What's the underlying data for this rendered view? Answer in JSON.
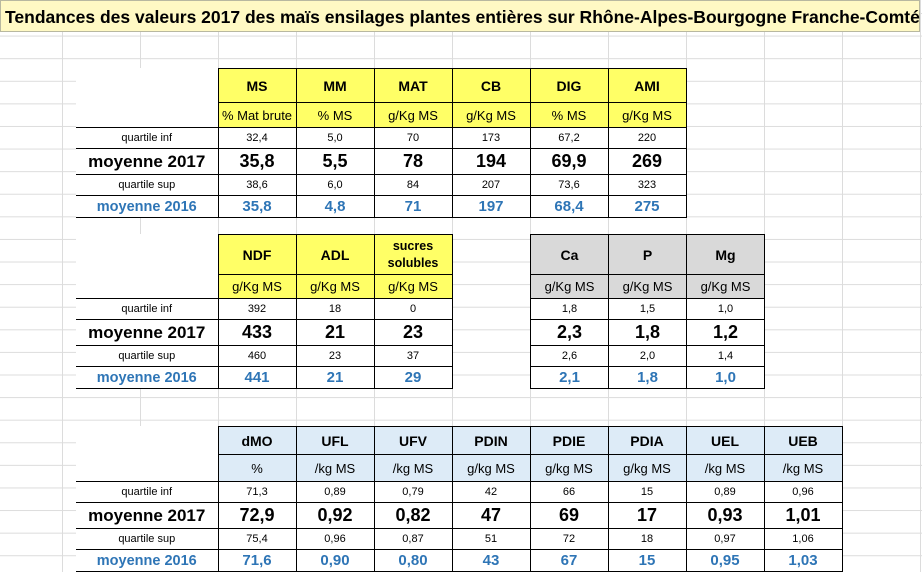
{
  "title": "Tendances des valeurs 2017 des maïs ensilages plantes entières sur Rhône-Alpes-Bourgogne Franche-Comté",
  "row_labels": {
    "quartile_inf": "quartile inf",
    "moyenne_2017": "moyenne 2017",
    "quartile_sup": "quartile sup",
    "moyenne_2016": "moyenne 2016"
  },
  "table1": {
    "headers": [
      "MS",
      "MM",
      "MAT",
      "CB",
      "DIG",
      "AMI"
    ],
    "units": [
      "% Mat brute",
      "% MS",
      "g/Kg MS",
      "g/Kg MS",
      "% MS",
      "g/Kg MS"
    ],
    "quartile_inf": [
      "32,4",
      "5,0",
      "70",
      "173",
      "67,2",
      "220"
    ],
    "moyenne_2017": [
      "35,8",
      "5,5",
      "78",
      "194",
      "69,9",
      "269"
    ],
    "quartile_sup": [
      "38,6",
      "6,0",
      "84",
      "207",
      "73,6",
      "323"
    ],
    "moyenne_2016": [
      "35,8",
      "4,8",
      "71",
      "197",
      "68,4",
      "275"
    ]
  },
  "table2": {
    "headers": [
      "NDF",
      "ADL",
      "sucres solubles"
    ],
    "units": [
      "g/Kg MS",
      "g/Kg MS",
      "g/Kg MS"
    ],
    "quartile_inf": [
      "392",
      "18",
      "0"
    ],
    "moyenne_2017": [
      "433",
      "21",
      "23"
    ],
    "quartile_sup": [
      "460",
      "23",
      "37"
    ],
    "moyenne_2016": [
      "441",
      "21",
      "29"
    ]
  },
  "table3": {
    "headers": [
      "Ca",
      "P",
      "Mg"
    ],
    "units": [
      "g/Kg MS",
      "g/Kg MS",
      "g/Kg MS"
    ],
    "quartile_inf": [
      "1,8",
      "1,5",
      "1,0"
    ],
    "moyenne_2017": [
      "2,3",
      "1,8",
      "1,2"
    ],
    "quartile_sup": [
      "2,6",
      "2,0",
      "1,4"
    ],
    "moyenne_2016": [
      "2,1",
      "1,8",
      "1,0"
    ]
  },
  "table4": {
    "headers": [
      "dMO",
      "UFL",
      "UFV",
      "PDIN",
      "PDIE",
      "PDIA",
      "UEL",
      "UEB"
    ],
    "units": [
      "%",
      "/kg MS",
      "/kg MS",
      "g/kg MS",
      "g/kg MS",
      "g/kg MS",
      "/kg MS",
      "/kg MS"
    ],
    "quartile_inf": [
      "71,3",
      "0,89",
      "0,79",
      "42",
      "66",
      "15",
      "0,89",
      "0,96"
    ],
    "moyenne_2017": [
      "72,9",
      "0,92",
      "0,82",
      "47",
      "69",
      "17",
      "0,93",
      "1,01"
    ],
    "quartile_sup": [
      "75,4",
      "0,96",
      "0,87",
      "51",
      "72",
      "18",
      "0,97",
      "1,06"
    ],
    "moyenne_2016": [
      "71,6",
      "0,90",
      "0,80",
      "43",
      "67",
      "15",
      "0,95",
      "1,03"
    ]
  },
  "colors": {
    "title_bg": "#fff9c4",
    "header_yellow": "#ffff66",
    "header_grey": "#d9d9d9",
    "header_blue": "#ddebf7",
    "moyenne_2016_text": "#2e75b6"
  }
}
